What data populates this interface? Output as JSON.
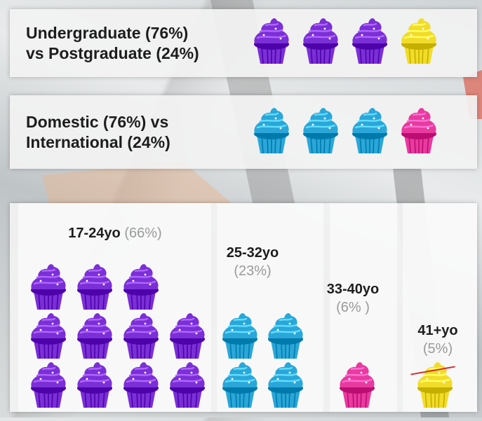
{
  "colors": {
    "undergraduate": "#7b2fd6",
    "postgraduate": "#f2dc2a",
    "domestic": "#2aa7d8",
    "international": "#e83a9f",
    "age_17_24": "#7b2fd6",
    "age_25_32": "#2aa7d8",
    "age_33_40": "#e83a9f",
    "age_41_plus": "#f2dc2a"
  },
  "icons": {
    "cupcake": "cupcake-icon"
  },
  "chart_data": [
    {
      "type": "pictograph",
      "title_lines": [
        "Undergraduate (76%)",
        "vs Postgraduate (24%)"
      ],
      "categories": [
        "Undergraduate",
        "Postgraduate"
      ],
      "values": [
        76,
        24
      ],
      "icon_counts": [
        3,
        1
      ]
    },
    {
      "type": "pictograph",
      "title_lines": [
        "Domestic (76%)  vs",
        "International (24%)"
      ],
      "categories": [
        "Domestic",
        "International"
      ],
      "values": [
        76,
        24
      ],
      "icon_counts": [
        3,
        1
      ]
    },
    {
      "type": "pictograph",
      "categories": [
        "17-24yo",
        "25-32yo",
        "33-40yo",
        "41+yo"
      ],
      "values": [
        66,
        23,
        6,
        5
      ],
      "percent_labels": [
        "(66%)",
        "(23%)",
        "(6% )",
        "(5%)"
      ],
      "icon_counts": [
        11,
        4,
        1,
        1
      ]
    }
  ]
}
